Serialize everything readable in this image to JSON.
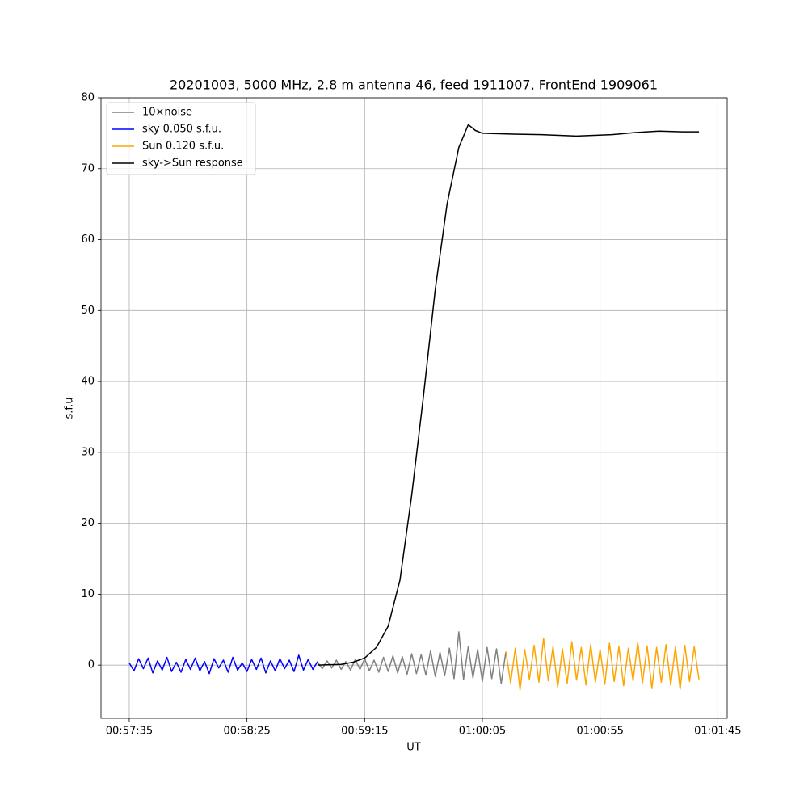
{
  "chart_data": {
    "type": "line",
    "title": "20201003, 5000 MHz, 2.8 m antenna 46, feed 1911007, FrontEnd 1909061",
    "xlabel": "UT",
    "ylabel": "s.f.u",
    "xlim": [
      "00:57:23",
      "01:01:49"
    ],
    "xticks": [
      "00:57:35",
      "00:58:25",
      "00:59:15",
      "01:00:05",
      "01:00:55",
      "01:01:45"
    ],
    "ylim": [
      -7.5,
      80
    ],
    "yticks": [
      0,
      10,
      20,
      30,
      40,
      50,
      60,
      70,
      80
    ],
    "grid": true,
    "legend": "upper left",
    "series": [
      {
        "name": "10×noise",
        "color": "#808080",
        "x": [
          "00:58:55",
          "00:58:57",
          "00:58:59",
          "00:59:01",
          "00:59:03",
          "00:59:05",
          "00:59:07",
          "00:59:09",
          "00:59:11",
          "00:59:13",
          "00:59:15",
          "00:59:17",
          "00:59:19",
          "00:59:21",
          "00:59:23",
          "00:59:25",
          "00:59:27",
          "00:59:29",
          "00:59:31",
          "00:59:33",
          "00:59:35",
          "00:59:37",
          "00:59:39",
          "00:59:41",
          "00:59:43",
          "00:59:45",
          "00:59:47",
          "00:59:49",
          "00:59:51",
          "00:59:53",
          "00:59:55",
          "00:59:57",
          "00:59:59",
          "01:00:01",
          "01:00:03",
          "01:00:05",
          "01:00:07",
          "01:00:09",
          "01:00:11",
          "01:00:13",
          "01:00:15"
        ],
        "values": [
          0.4,
          -0.5,
          0.6,
          -0.4,
          0.7,
          -0.6,
          0.5,
          -0.7,
          0.8,
          -0.6,
          0.9,
          -0.8,
          0.7,
          -1.0,
          1.1,
          -0.9,
          1.3,
          -1.1,
          1.2,
          -1.3,
          1.6,
          -1.2,
          1.5,
          -1.4,
          2.0,
          -1.6,
          1.8,
          -1.5,
          2.4,
          -1.9,
          4.7,
          -2.0,
          2.6,
          -1.8,
          2.2,
          -2.3,
          2.5,
          -1.9,
          2.3,
          -2.6,
          1.9
        ]
      },
      {
        "name": "sky 0.050 s.f.u.",
        "color": "#0000ff",
        "x": [
          "00:57:35",
          "00:57:37",
          "00:57:39",
          "00:57:41",
          "00:57:43",
          "00:57:45",
          "00:57:47",
          "00:57:49",
          "00:57:51",
          "00:57:53",
          "00:57:55",
          "00:57:57",
          "00:57:59",
          "00:58:01",
          "00:58:03",
          "00:58:05",
          "00:58:07",
          "00:58:09",
          "00:58:11",
          "00:58:13",
          "00:58:15",
          "00:58:17",
          "00:58:19",
          "00:58:21",
          "00:58:23",
          "00:58:25",
          "00:58:27",
          "00:58:29",
          "00:58:31",
          "00:58:33",
          "00:58:35",
          "00:58:37",
          "00:58:39",
          "00:58:41",
          "00:58:43",
          "00:58:45",
          "00:58:47",
          "00:58:49",
          "00:58:51",
          "00:58:53",
          "00:58:55"
        ],
        "values": [
          0.3,
          -0.8,
          0.9,
          -0.5,
          1.0,
          -1.1,
          0.6,
          -0.7,
          1.1,
          -0.9,
          0.4,
          -1.0,
          0.8,
          -0.6,
          1.0,
          -0.8,
          0.5,
          -1.2,
          0.9,
          -0.4,
          0.7,
          -1.0,
          1.1,
          -0.7,
          0.3,
          -0.9,
          0.8,
          -0.6,
          1.0,
          -1.1,
          0.6,
          -0.8,
          0.9,
          -0.5,
          0.7,
          -0.9,
          1.4,
          -0.7,
          0.8,
          -0.6,
          0.5
        ]
      },
      {
        "name": "Sun 0.120 s.f.u.",
        "color": "#ffa500",
        "x": [
          "01:00:15",
          "01:00:17",
          "01:00:19",
          "01:00:21",
          "01:00:23",
          "01:00:25",
          "01:00:27",
          "01:00:29",
          "01:00:31",
          "01:00:33",
          "01:00:35",
          "01:00:37",
          "01:00:39",
          "01:00:41",
          "01:00:43",
          "01:00:45",
          "01:00:47",
          "01:00:49",
          "01:00:51",
          "01:00:53",
          "01:00:55",
          "01:00:57",
          "01:00:59",
          "01:01:01",
          "01:01:03",
          "01:01:05",
          "01:01:07",
          "01:01:09",
          "01:01:11",
          "01:01:13",
          "01:01:15",
          "01:01:17",
          "01:01:19",
          "01:01:21",
          "01:01:23",
          "01:01:25",
          "01:01:27",
          "01:01:29",
          "01:01:31",
          "01:01:33",
          "01:01:35",
          "01:01:37"
        ],
        "values": [
          1.9,
          -2.5,
          2.4,
          -3.5,
          2.2,
          -2.0,
          2.8,
          -2.4,
          3.8,
          -2.2,
          2.6,
          -3.1,
          2.3,
          -2.6,
          3.3,
          -2.1,
          2.5,
          -2.8,
          2.9,
          -2.4,
          2.2,
          -2.7,
          3.1,
          -2.3,
          2.6,
          -2.9,
          2.4,
          -2.2,
          3.2,
          -2.5,
          2.7,
          -3.3,
          2.5,
          -2.4,
          2.9,
          -2.8,
          2.6,
          -3.4,
          2.8,
          -2.3,
          2.6,
          -2.0
        ]
      },
      {
        "name": "sky->Sun response",
        "color": "#000000",
        "x": [
          "00:58:55",
          "00:59:05",
          "00:59:10",
          "00:59:15",
          "00:59:20",
          "00:59:25",
          "00:59:30",
          "00:59:35",
          "00:59:40",
          "00:59:45",
          "00:59:50",
          "00:59:55",
          "00:59:59",
          "01:00:02",
          "01:00:05",
          "01:00:15",
          "01:00:30",
          "01:00:45",
          "01:01:00",
          "01:01:10",
          "01:01:20",
          "01:01:30",
          "01:01:37"
        ],
        "values": [
          0,
          0.1,
          0.4,
          1.0,
          2.5,
          5.5,
          12,
          24,
          38,
          53,
          65,
          73,
          76.2,
          75.4,
          75.0,
          74.9,
          74.8,
          74.6,
          74.8,
          75.1,
          75.3,
          75.2,
          75.2
        ]
      }
    ]
  }
}
